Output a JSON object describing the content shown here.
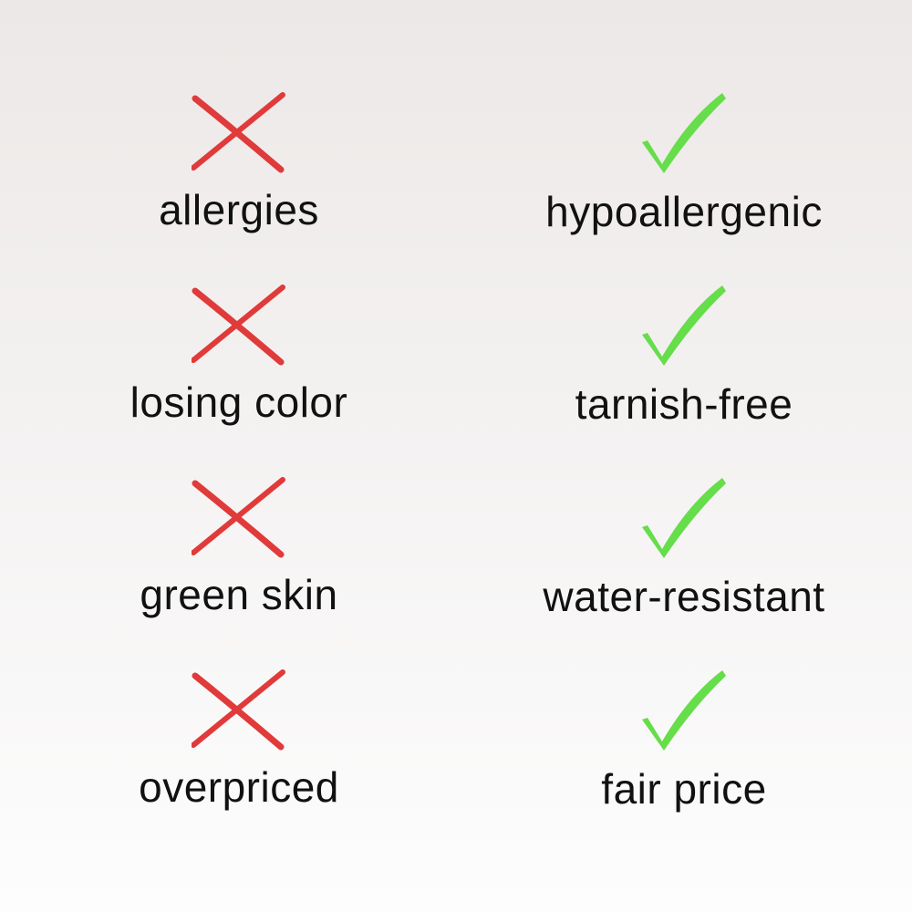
{
  "colors": {
    "cross": "#e03a3a",
    "check": "#66dd4a",
    "text": "#111111"
  },
  "rows": [
    {
      "problem": {
        "icon": "cross-icon",
        "label": "allergies"
      },
      "solution": {
        "icon": "check-icon",
        "label": "hypoallergenic"
      }
    },
    {
      "problem": {
        "icon": "cross-icon",
        "label": "losing color"
      },
      "solution": {
        "icon": "check-icon",
        "label": "tarnish-free"
      }
    },
    {
      "problem": {
        "icon": "cross-icon",
        "label": "green skin"
      },
      "solution": {
        "icon": "check-icon",
        "label": "water-resistant"
      }
    },
    {
      "problem": {
        "icon": "cross-icon",
        "label": "overpriced"
      },
      "solution": {
        "icon": "check-icon",
        "label": "fair price"
      }
    }
  ]
}
